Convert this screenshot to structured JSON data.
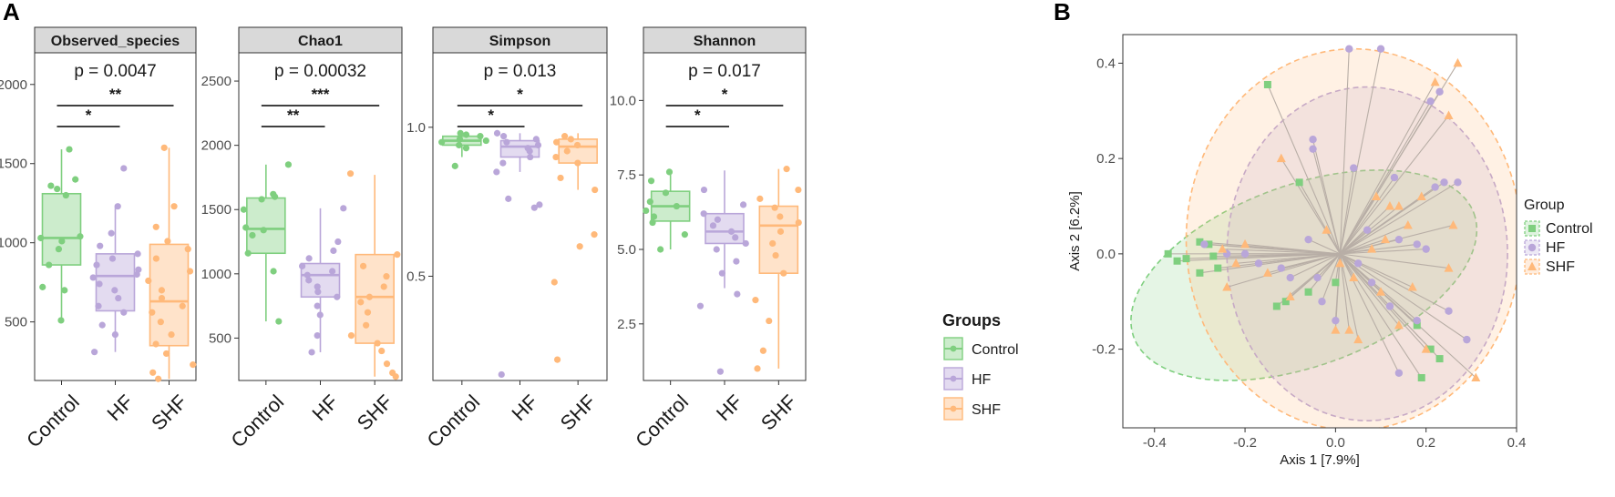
{
  "panel_labels": {
    "a": "A",
    "b": "B"
  },
  "colors": {
    "Control": "#7fcf7f",
    "HF": "#b9a6d9",
    "SHF": "#ffb97a"
  },
  "chart_data": [
    {
      "type": "box",
      "title": "Observed_species",
      "categories": [
        "Control",
        "HF",
        "SHF"
      ],
      "ylim": [
        130,
        2200
      ],
      "yticks": [
        500,
        1000,
        1500,
        2000
      ],
      "pvalue": "p = 0.0047",
      "brackets": [
        {
          "from": 0,
          "to": 1,
          "label": "*"
        },
        {
          "from": 0,
          "to": 2,
          "label": "**"
        }
      ],
      "series": [
        {
          "name": "Control",
          "q1": 860,
          "median": 1030,
          "q3": 1310,
          "wlo": 510,
          "whi": 1590,
          "points": [
            510,
            700,
            720,
            860,
            960,
            1010,
            1030,
            1040,
            1300,
            1340,
            1360,
            1400,
            1590
          ]
        },
        {
          "name": "HF",
          "q1": 570,
          "median": 790,
          "q3": 930,
          "wlo": 310,
          "whi": 1230,
          "points": [
            310,
            420,
            480,
            560,
            600,
            650,
            700,
            740,
            780,
            800,
            830,
            860,
            900,
            930,
            980,
            1060,
            1230,
            1470
          ]
        },
        {
          "name": "SHF",
          "q1": 350,
          "median": 630,
          "q3": 990,
          "wlo": 140,
          "whi": 1600,
          "points": [
            140,
            180,
            230,
            300,
            360,
            420,
            500,
            560,
            600,
            650,
            700,
            760,
            820,
            900,
            960,
            1010,
            1100,
            1230,
            1600
          ]
        }
      ]
    },
    {
      "type": "box",
      "title": "Chao1",
      "categories": [
        "Control",
        "HF",
        "SHF"
      ],
      "ylim": [
        170,
        2720
      ],
      "yticks": [
        500,
        1000,
        1500,
        2000,
        2500
      ],
      "pvalue": "p = 0.00032",
      "brackets": [
        {
          "from": 0,
          "to": 1,
          "label": "**"
        },
        {
          "from": 0,
          "to": 2,
          "label": "***"
        }
      ],
      "series": [
        {
          "name": "Control",
          "q1": 1160,
          "median": 1350,
          "q3": 1590,
          "wlo": 630,
          "whi": 1850,
          "points": [
            630,
            1020,
            1160,
            1300,
            1340,
            1360,
            1500,
            1580,
            1600,
            1620,
            1850
          ]
        },
        {
          "name": "HF",
          "q1": 820,
          "median": 990,
          "q3": 1080,
          "wlo": 390,
          "whi": 1510,
          "points": [
            390,
            520,
            680,
            750,
            820,
            860,
            900,
            950,
            990,
            1020,
            1060,
            1120,
            1180,
            1250,
            1510
          ]
        },
        {
          "name": "SHF",
          "q1": 460,
          "median": 820,
          "q3": 1150,
          "wlo": 200,
          "whi": 1770,
          "points": [
            200,
            230,
            300,
            400,
            460,
            520,
            600,
            700,
            780,
            820,
            900,
            980,
            1060,
            1150,
            1780
          ]
        }
      ]
    },
    {
      "type": "box",
      "title": "Simpson",
      "categories": [
        "Control",
        "HF",
        "SHF"
      ],
      "ylim": [
        0.15,
        1.25
      ],
      "yticks": [
        0.5,
        1.0
      ],
      "yticklabels": [
        "0.5",
        "1.0"
      ],
      "pvalue": "p = 0.013",
      "brackets": [
        {
          "from": 0,
          "to": 1,
          "label": "*"
        },
        {
          "from": 0,
          "to": 2,
          "label": "*"
        }
      ],
      "series": [
        {
          "name": "Control",
          "q1": 0.94,
          "median": 0.955,
          "q3": 0.97,
          "wlo": 0.9,
          "whi": 0.98,
          "points": [
            0.87,
            0.93,
            0.94,
            0.95,
            0.955,
            0.96,
            0.97,
            0.975,
            0.98
          ]
        },
        {
          "name": "HF",
          "q1": 0.9,
          "median": 0.935,
          "q3": 0.955,
          "wlo": 0.85,
          "whi": 0.98,
          "points": [
            0.17,
            0.73,
            0.74,
            0.76,
            0.85,
            0.88,
            0.9,
            0.92,
            0.93,
            0.94,
            0.95,
            0.96,
            0.97,
            0.98
          ]
        },
        {
          "name": "SHF",
          "q1": 0.88,
          "median": 0.935,
          "q3": 0.96,
          "wlo": 0.79,
          "whi": 0.98,
          "points": [
            0.22,
            0.48,
            0.6,
            0.64,
            0.79,
            0.83,
            0.88,
            0.9,
            0.92,
            0.94,
            0.95,
            0.96,
            0.97
          ]
        }
      ]
    },
    {
      "type": "box",
      "title": "Shannon",
      "categories": [
        "Control",
        "HF",
        "SHF"
      ],
      "ylim": [
        0.6,
        11.6
      ],
      "yticks": [
        2.5,
        5.0,
        7.5,
        10.0
      ],
      "yticklabels": [
        "2.5",
        "5.0",
        "7.5",
        "10.0"
      ],
      "pvalue": "p = 0.017",
      "brackets": [
        {
          "from": 0,
          "to": 1,
          "label": "*"
        },
        {
          "from": 0,
          "to": 2,
          "label": "*"
        }
      ],
      "series": [
        {
          "name": "Control",
          "q1": 5.95,
          "median": 6.45,
          "q3": 6.95,
          "wlo": 5.0,
          "whi": 7.65,
          "points": [
            5.0,
            5.5,
            5.9,
            6.1,
            6.3,
            6.45,
            6.6,
            6.9,
            7.3,
            7.6
          ]
        },
        {
          "name": "HF",
          "q1": 5.2,
          "median": 5.6,
          "q3": 6.2,
          "wlo": 3.7,
          "whi": 7.65,
          "points": [
            0.9,
            3.1,
            3.5,
            4.2,
            4.6,
            5.0,
            5.2,
            5.4,
            5.6,
            5.8,
            6.0,
            6.2,
            6.5,
            7.0
          ]
        },
        {
          "name": "SHF",
          "q1": 4.2,
          "median": 5.8,
          "q3": 6.45,
          "wlo": 1.0,
          "whi": 7.7,
          "points": [
            1.0,
            1.6,
            2.6,
            3.3,
            4.2,
            4.8,
            5.2,
            5.6,
            5.9,
            6.1,
            6.4,
            6.7,
            7.0,
            7.7
          ]
        }
      ]
    },
    {
      "type": "scatter",
      "xlabel": "Axis 1 [7.9%]",
      "ylabel": "Axis 2 [6.2%]",
      "xlim": [
        -0.47,
        0.4
      ],
      "ylim": [
        -0.365,
        0.46
      ],
      "xticks": [
        -0.4,
        -0.2,
        0.0,
        0.2,
        0.4
      ],
      "xticklabels": [
        "-0.4",
        "-0.2",
        "0.0",
        "0.2",
        "0.4"
      ],
      "yticks": [
        -0.2,
        0.0,
        0.2,
        0.4
      ],
      "yticklabels": [
        "-0.2",
        "0.0",
        "0.2",
        "0.4"
      ],
      "centroid": [
        0.01,
        0.0
      ],
      "ellipses": [
        {
          "name": "Control",
          "cx": -0.07,
          "cy": -0.045,
          "rx": 0.4,
          "ry": 0.19,
          "angle": -20
        },
        {
          "name": "HF",
          "cx": 0.07,
          "cy": 0.0,
          "rx": 0.31,
          "ry": 0.35,
          "angle": 0
        },
        {
          "name": "SHF",
          "cx": 0.04,
          "cy": 0.03,
          "rx": 0.37,
          "ry": 0.4,
          "angle": 0
        }
      ],
      "series": [
        {
          "name": "Control",
          "marker": "square",
          "points": [
            [
              -0.37,
              0.0
            ],
            [
              -0.35,
              -0.015
            ],
            [
              -0.33,
              -0.01
            ],
            [
              -0.3,
              0.025
            ],
            [
              -0.28,
              0.02
            ],
            [
              -0.3,
              -0.04
            ],
            [
              -0.26,
              -0.03
            ],
            [
              -0.27,
              -0.005
            ],
            [
              -0.15,
              0.355
            ],
            [
              -0.08,
              0.15
            ],
            [
              -0.13,
              -0.11
            ],
            [
              -0.11,
              -0.1
            ],
            [
              -0.06,
              -0.08
            ],
            [
              0.0,
              -0.06
            ],
            [
              0.18,
              -0.15
            ],
            [
              0.21,
              -0.2
            ],
            [
              0.23,
              -0.22
            ],
            [
              0.19,
              -0.26
            ]
          ]
        },
        {
          "name": "HF",
          "marker": "circle",
          "points": [
            [
              0.03,
              0.43
            ],
            [
              0.1,
              0.43
            ],
            [
              0.21,
              0.32
            ],
            [
              0.23,
              0.34
            ],
            [
              -0.05,
              0.24
            ],
            [
              -0.05,
              0.22
            ],
            [
              0.04,
              0.18
            ],
            [
              0.13,
              0.16
            ],
            [
              0.22,
              0.14
            ],
            [
              0.24,
              0.15
            ],
            [
              0.27,
              0.15
            ],
            [
              -0.29,
              0.02
            ],
            [
              -0.24,
              0.0
            ],
            [
              -0.2,
              0.0
            ],
            [
              -0.17,
              -0.02
            ],
            [
              -0.12,
              -0.03
            ],
            [
              -0.06,
              0.03
            ],
            [
              -0.1,
              -0.05
            ],
            [
              -0.04,
              -0.05
            ],
            [
              0.07,
              0.05
            ],
            [
              0.14,
              0.03
            ],
            [
              0.18,
              0.02
            ],
            [
              0.2,
              0.01
            ],
            [
              -0.03,
              -0.1
            ],
            [
              0.0,
              -0.14
            ],
            [
              0.05,
              -0.02
            ],
            [
              0.08,
              -0.06
            ],
            [
              0.12,
              -0.11
            ],
            [
              0.18,
              -0.14
            ],
            [
              0.25,
              -0.12
            ],
            [
              0.29,
              -0.18
            ],
            [
              0.14,
              -0.25
            ]
          ]
        },
        {
          "name": "SHF",
          "marker": "triangle",
          "points": [
            [
              0.27,
              0.4
            ],
            [
              0.22,
              0.36
            ],
            [
              0.25,
              0.29
            ],
            [
              0.14,
              0.1
            ],
            [
              0.09,
              0.12
            ],
            [
              0.19,
              0.12
            ],
            [
              -0.12,
              0.2
            ],
            [
              0.16,
              0.06
            ],
            [
              0.26,
              0.06
            ],
            [
              0.25,
              -0.03
            ],
            [
              0.11,
              0.03
            ],
            [
              0.08,
              0.01
            ],
            [
              -0.25,
              0.01
            ],
            [
              -0.22,
              -0.02
            ],
            [
              -0.2,
              0.02
            ],
            [
              -0.15,
              -0.04
            ],
            [
              -0.24,
              -0.07
            ],
            [
              -0.1,
              -0.09
            ],
            [
              0.01,
              -0.02
            ],
            [
              0.04,
              -0.05
            ],
            [
              0.1,
              -0.08
            ],
            [
              0.05,
              -0.18
            ],
            [
              0.03,
              -0.16
            ],
            [
              0.0,
              -0.16
            ],
            [
              0.14,
              -0.15
            ],
            [
              0.2,
              -0.2
            ],
            [
              0.31,
              -0.26
            ],
            [
              0.17,
              -0.07
            ],
            [
              0.12,
              0.1
            ],
            [
              -0.02,
              0.05
            ]
          ]
        }
      ]
    }
  ],
  "legend_a": {
    "title": "Groups",
    "items": [
      "Control",
      "HF",
      "SHF"
    ]
  },
  "legend_b": {
    "title": "Group",
    "items": [
      "Control",
      "HF",
      "SHF"
    ]
  }
}
